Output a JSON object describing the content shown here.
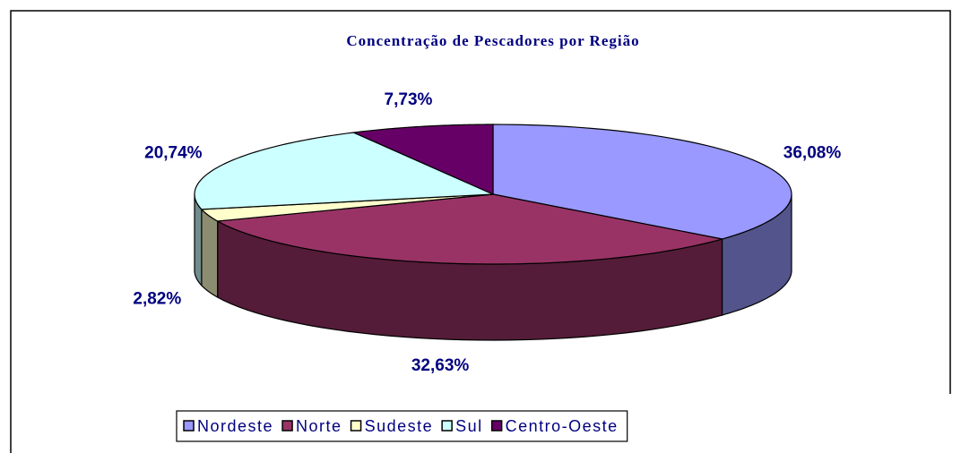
{
  "chart_data": {
    "type": "pie3d",
    "title": "Concentração de Pescadores por Região",
    "categories": [
      "Nordeste",
      "Norte",
      "Sudeste",
      "Sul",
      "Centro-Oeste"
    ],
    "values": [
      36.08,
      32.63,
      2.82,
      20.74,
      7.73
    ],
    "value_labels": [
      "36,08%",
      "32,63%",
      "2,82%",
      "20,74%",
      "7,73%"
    ],
    "colors": [
      "#9999ff",
      "#993366",
      "#ffffcc",
      "#ccffff",
      "#660066"
    ]
  }
}
